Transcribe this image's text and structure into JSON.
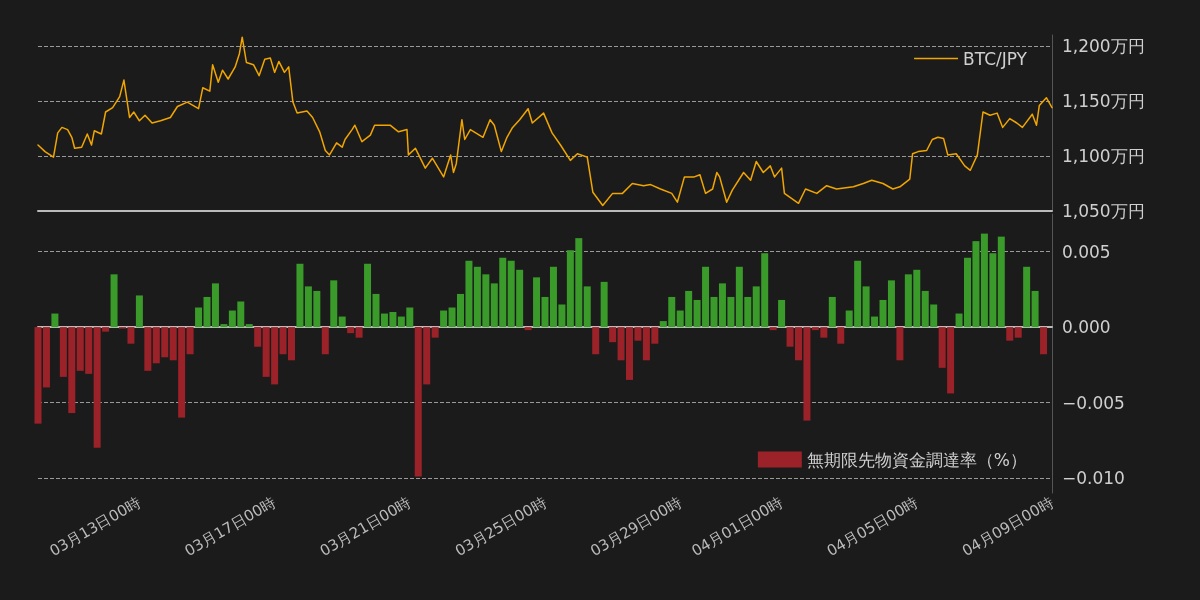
{
  "chart_data": [
    {
      "type": "line",
      "x": [
        "--03-10T00:00",
        "--03-10T05:00",
        "--03-10T11:00",
        "--03-10T14:00",
        "--03-10T17:00",
        "--03-10T21:00",
        "--03-11T00:00",
        "--03-11T02:00",
        "--03-11T07:00",
        "--03-11T11:00",
        "--03-11T14:00",
        "--03-11T16:00",
        "--03-11T21:00",
        "--03-12T00:00",
        "--03-12T05:00",
        "--03-12T10:00",
        "--03-12T13:00",
        "--03-12T17:00",
        "--03-12T20:00",
        "--03-13T00:00",
        "--03-13T04:00",
        "--03-13T09:00",
        "--03-13T15:00",
        "--03-13T22:00",
        "--03-14T03:00",
        "--03-14T10:00",
        "--03-14T18:00",
        "--03-14T21:00",
        "--03-15T02:00",
        "--03-15T04:00",
        "--03-15T08:00",
        "--03-15T11:00",
        "--03-15T15:00",
        "--03-15T20:00",
        "--03-15T23:00",
        "--03-16T01:00",
        "--03-16T04:00",
        "--03-16T09:00",
        "--03-16T13:00",
        "--03-16T17:00",
        "--03-16T21:00",
        "--03-17T00:00",
        "--03-17T03:00",
        "--03-17T07:00",
        "--03-17T10:00",
        "--03-17T13:00",
        "--03-17T16:00",
        "--03-17T23:00",
        "--03-18T03:00",
        "--03-18T08:00",
        "--03-18T12:00",
        "--03-18T15:00",
        "--03-18T20:00",
        "--03-19T00:00",
        "--03-19T02:00",
        "--03-19T07:00",
        "--03-19T09:00",
        "--03-19T14:00",
        "--03-19T20:00",
        "--03-19T23:00",
        "--03-20T10:00",
        "--03-20T16:00",
        "--03-20T22:00",
        "--03-20T23:00",
        "--03-21T04:00",
        "--03-21T11:00",
        "--03-21T16:00",
        "--03-22T00:00",
        "--03-22T05:00",
        "--03-22T07:00",
        "--03-22T09:00",
        "--03-22T13:00",
        "--03-22T15:00",
        "--03-22T19:00",
        "--03-23T04:00",
        "--03-23T09:00",
        "--03-23T12:00",
        "--03-23T17:00",
        "--03-23T21:00",
        "--03-24T01:00",
        "--03-24T06:00",
        "--03-24T12:00",
        "--03-24T15:00",
        "--03-24T23:00",
        "--03-25T05:00",
        "--03-25T11:00",
        "--03-25T18:00",
        "--03-25T23:00",
        "--03-26T06:00",
        "--03-26T10:00",
        "--03-26T17:00",
        "--03-27T00:00",
        "--03-27T07:00",
        "--03-27T14:00",
        "--03-27T22:00",
        "--03-28T03:00",
        "--03-28T10:00",
        "--03-28T18:00",
        "--03-28T22:00",
        "--03-29T03:00",
        "--03-29T10:00",
        "--03-29T14:00",
        "--03-29T18:00",
        "--03-29T23:00",
        "--03-30T02:00",
        "--03-30T04:00",
        "--03-30T09:00",
        "--03-30T13:00",
        "--03-30T21:00",
        "--03-31T02:00",
        "--03-31T06:00",
        "--03-31T11:00",
        "--03-31T16:00",
        "--03-31T19:00",
        "--04-01T00:00",
        "--04-01T02:00",
        "--04-01T12:00",
        "--04-01T17:00",
        "--04-02T01:00",
        "--04-02T08:00",
        "--04-02T15:00",
        "--04-03T03:00",
        "--04-03T10:00",
        "--04-03T16:00",
        "--04-04T00:00",
        "--04-04T07:00",
        "--04-04T12:00",
        "--04-04T19:00",
        "--04-04T21:00",
        "--04-05T01:00",
        "--04-05T07:00",
        "--04-05T11:00",
        "--04-05T15:00",
        "--04-05T19:00",
        "--04-05T22:00",
        "--04-06T04:00",
        "--04-06T10:00",
        "--04-06T14:00",
        "--04-06T19:00",
        "--04-06T23:00",
        "--04-07T04:00",
        "--04-07T09:00",
        "--04-07T13:00",
        "--04-07T18:00",
        "--04-07T23:00",
        "--04-08T03:00",
        "--04-08T10:00",
        "--04-08T13:00",
        "--04-08T15:00",
        "--04-08T20:00",
        "--04-09T00:00"
      ],
      "series": [
        {
          "name": "BTC/JPY",
          "color": "#f0a500",
          "values": [
            1110,
            1104,
            1099,
            1121,
            1126,
            1124,
            1117,
            1107,
            1108,
            1120,
            1110,
            1123,
            1120,
            1140,
            1144,
            1154,
            1169,
            1135,
            1140,
            1132,
            1137,
            1130,
            1132,
            1135,
            1145,
            1149,
            1143,
            1162,
            1159,
            1183,
            1167,
            1178,
            1170,
            1181,
            1193,
            1208,
            1185,
            1183,
            1173,
            1188,
            1189,
            1176,
            1186,
            1176,
            1181,
            1149,
            1139,
            1141,
            1135,
            1122,
            1105,
            1101,
            1112,
            1108,
            1115,
            1124,
            1128,
            1113,
            1119,
            1128,
            1128,
            1122,
            1124,
            1101,
            1107,
            1089,
            1098,
            1081,
            1101,
            1085,
            1093,
            1133,
            1115,
            1124,
            1117,
            1133,
            1128,
            1104,
            1117,
            1126,
            1133,
            1143,
            1130,
            1139,
            1121,
            1110,
            1096,
            1102,
            1099,
            1067,
            1055,
            1066,
            1066,
            1075,
            1073,
            1074,
            1070,
            1066,
            1058,
            1081,
            1081,
            1083,
            1066,
            1070,
            1085,
            1081,
            1058,
            1069,
            1085,
            1078,
            1095,
            1085,
            1091,
            1081,
            1089,
            1066,
            1057,
            1070,
            1066,
            1073,
            1070,
            1072,
            1075,
            1078,
            1075,
            1070,
            1072,
            1079,
            1102,
            1104,
            1105,
            1115,
            1117,
            1116,
            1101,
            1102,
            1091,
            1087,
            1101,
            1140,
            1137,
            1139,
            1126,
            1134,
            1130,
            1126,
            1138,
            1128,
            1146,
            1153,
            1144
          ]
        }
      ],
      "xlim": [
        "--03-10T00:00",
        "--04-09T00:00"
      ],
      "ylim": [
        1050,
        1210
      ],
      "yticks": [
        {
          "value": 1050,
          "label": "1,050万円"
        },
        {
          "value": 1100,
          "label": "1,100万円"
        },
        {
          "value": 1150,
          "label": "1,150万円"
        },
        {
          "value": 1200,
          "label": "1,200万円"
        }
      ],
      "tick_labels": "y",
      "grid": "y",
      "legend": "top right"
    },
    {
      "type": "bar",
      "x": [
        "--03-10T00:00",
        "--03-10T06:00",
        "--03-10T12:00",
        "--03-10T18:00",
        "--03-11T00:00",
        "--03-11T06:00",
        "--03-11T12:00",
        "--03-11T18:00",
        "--03-12T00:00",
        "--03-12T06:00",
        "--03-12T12:00",
        "--03-12T18:00",
        "--03-13T00:00",
        "--03-13T06:00",
        "--03-13T12:00",
        "--03-13T18:00",
        "--03-14T00:00",
        "--03-14T06:00",
        "--03-14T12:00",
        "--03-14T18:00",
        "--03-15T00:00",
        "--03-15T06:00",
        "--03-15T12:00",
        "--03-15T18:00",
        "--03-16T00:00",
        "--03-16T06:00",
        "--03-16T12:00",
        "--03-16T18:00",
        "--03-17T00:00",
        "--03-17T06:00",
        "--03-17T12:00",
        "--03-17T18:00",
        "--03-18T00:00",
        "--03-18T06:00",
        "--03-18T12:00",
        "--03-18T18:00",
        "--03-19T00:00",
        "--03-19T06:00",
        "--03-19T12:00",
        "--03-19T18:00",
        "--03-20T00:00",
        "--03-20T06:00",
        "--03-20T12:00",
        "--03-20T18:00",
        "--03-21T00:00",
        "--03-21T06:00",
        "--03-21T12:00",
        "--03-21T18:00",
        "--03-22T00:00",
        "--03-22T06:00",
        "--03-22T12:00",
        "--03-22T18:00",
        "--03-23T00:00",
        "--03-23T06:00",
        "--03-23T12:00",
        "--03-23T18:00",
        "--03-24T00:00",
        "--03-24T06:00",
        "--03-24T12:00",
        "--03-24T18:00",
        "--03-25T00:00",
        "--03-25T06:00",
        "--03-25T12:00",
        "--03-25T18:00",
        "--03-26T00:00",
        "--03-26T06:00",
        "--03-26T12:00",
        "--03-26T18:00",
        "--03-27T00:00",
        "--03-27T06:00",
        "--03-27T12:00",
        "--03-27T18:00",
        "--03-28T00:00",
        "--03-28T06:00",
        "--03-28T12:00",
        "--03-28T18:00",
        "--03-29T00:00",
        "--03-29T06:00",
        "--03-29T12:00",
        "--03-29T18:00",
        "--03-30T00:00",
        "--03-30T06:00",
        "--03-30T12:00",
        "--03-30T18:00",
        "--03-31T00:00",
        "--03-31T06:00",
        "--03-31T12:00",
        "--03-31T18:00",
        "--04-01T00:00",
        "--04-01T06:00",
        "--04-01T12:00",
        "--04-01T18:00",
        "--04-02T00:00",
        "--04-02T06:00",
        "--04-02T12:00",
        "--04-02T18:00",
        "--04-03T00:00",
        "--04-03T06:00",
        "--04-03T12:00",
        "--04-03T18:00",
        "--04-04T00:00",
        "--04-04T06:00",
        "--04-04T12:00",
        "--04-04T18:00",
        "--04-05T00:00",
        "--04-05T06:00",
        "--04-05T12:00",
        "--04-05T18:00",
        "--04-06T00:00",
        "--04-06T06:00",
        "--04-06T12:00",
        "--04-06T18:00",
        "--04-07T00:00",
        "--04-07T06:00",
        "--04-07T12:00",
        "--04-07T18:00",
        "--04-08T00:00",
        "--04-08T06:00",
        "--04-08T12:00",
        "--04-08T18:00"
      ],
      "series": [
        {
          "name": "無期限先物資金調達率（%）",
          "color": "#9b2228",
          "values": [
            -0.0064,
            -0.004,
            0.0009,
            -0.0033,
            -0.0057,
            -0.0029,
            -0.0031,
            -0.008,
            -0.0003,
            0.0035,
            -0.0001,
            -0.0011,
            0.0021,
            -0.0029,
            -0.0024,
            -0.002,
            -0.0022,
            -0.006,
            -0.0018,
            0.0013,
            0.002,
            0.0029,
            0.0002,
            0.0011,
            0.0017,
            0.0002,
            -0.0013,
            -0.0033,
            -0.0038,
            -0.0018,
            -0.0022,
            0.0042,
            0.0027,
            0.0024,
            -0.0018,
            0.0031,
            0.0007,
            -0.0004,
            -0.0007,
            0.0042,
            0.0022,
            0.0009,
            0.001,
            0.0007,
            0.0013,
            -0.0099,
            -0.0038,
            -0.0007,
            0.0011,
            0.0013,
            0.0022,
            0.0044,
            0.004,
            0.0035,
            0.0029,
            0.0046,
            0.0044,
            0.0038,
            -0.0002,
            0.0033,
            0.002,
            0.004,
            0.0015,
            0.0051,
            0.0059,
            0.0027,
            -0.0018,
            0.003,
            -0.001,
            -0.0022,
            -0.0035,
            -0.0009,
            -0.0022,
            -0.0011,
            0.0004,
            0.002,
            0.0011,
            0.0024,
            0.0018,
            0.004,
            0.002,
            0.0029,
            0.002,
            0.004,
            0.002,
            0.0027,
            0.0049,
            -0.0002,
            0.0018,
            -0.0013,
            -0.0022,
            -0.0062,
            -0.0002,
            -0.0007,
            0.002,
            -0.0011,
            0.0011,
            0.0044,
            0.0027,
            0.0007,
            0.0018,
            0.0031,
            -0.0022,
            0.0035,
            0.0038,
            0.0024,
            0.0015,
            -0.0027,
            -0.0044,
            0.0009,
            0.0046,
            0.0057,
            0.0062,
            0.0049,
            0.006,
            -0.0009,
            -0.0007,
            0.004,
            0.0024,
            -0.0018
          ],
          "colors": [
            "#9b2228",
            "#9b2228",
            "#3a9a2a",
            "#9b2228",
            "#9b2228",
            "#9b2228",
            "#9b2228",
            "#9b2228",
            "#9b2228",
            "#3a9a2a",
            "#9b2228",
            "#9b2228",
            "#3a9a2a",
            "#9b2228",
            "#9b2228",
            "#9b2228",
            "#9b2228",
            "#9b2228",
            "#9b2228",
            "#3a9a2a",
            "#3a9a2a",
            "#3a9a2a",
            "#3a9a2a",
            "#3a9a2a",
            "#3a9a2a",
            "#3a9a2a",
            "#9b2228",
            "#9b2228",
            "#9b2228",
            "#9b2228",
            "#9b2228",
            "#3a9a2a",
            "#3a9a2a",
            "#3a9a2a",
            "#9b2228",
            "#3a9a2a",
            "#3a9a2a",
            "#9b2228",
            "#9b2228",
            "#3a9a2a",
            "#3a9a2a",
            "#3a9a2a",
            "#3a9a2a",
            "#3a9a2a",
            "#3a9a2a",
            "#9b2228",
            "#9b2228",
            "#9b2228",
            "#3a9a2a",
            "#3a9a2a",
            "#3a9a2a",
            "#3a9a2a",
            "#3a9a2a",
            "#3a9a2a",
            "#3a9a2a",
            "#3a9a2a",
            "#3a9a2a",
            "#3a9a2a",
            "#9b2228",
            "#3a9a2a",
            "#3a9a2a",
            "#3a9a2a",
            "#3a9a2a",
            "#3a9a2a",
            "#3a9a2a",
            "#3a9a2a",
            "#9b2228",
            "#3a9a2a",
            "#9b2228",
            "#9b2228",
            "#9b2228",
            "#9b2228",
            "#9b2228",
            "#9b2228",
            "#3a9a2a",
            "#3a9a2a",
            "#3a9a2a",
            "#3a9a2a",
            "#3a9a2a",
            "#3a9a2a",
            "#3a9a2a",
            "#3a9a2a",
            "#3a9a2a",
            "#3a9a2a",
            "#3a9a2a",
            "#3a9a2a",
            "#3a9a2a",
            "#9b2228",
            "#3a9a2a",
            "#9b2228",
            "#9b2228",
            "#9b2228",
            "#9b2228",
            "#9b2228",
            "#3a9a2a",
            "#9b2228",
            "#3a9a2a",
            "#3a9a2a",
            "#3a9a2a",
            "#3a9a2a",
            "#3a9a2a",
            "#3a9a2a",
            "#9b2228",
            "#3a9a2a",
            "#3a9a2a",
            "#3a9a2a",
            "#3a9a2a",
            "#9b2228",
            "#9b2228",
            "#3a9a2a",
            "#3a9a2a",
            "#3a9a2a",
            "#3a9a2a",
            "#3a9a2a",
            "#3a9a2a",
            "#9b2228",
            "#9b2228",
            "#3a9a2a",
            "#3a9a2a",
            "#9b2228"
          ]
        }
      ],
      "xlim": [
        "--03-10T00:00",
        "--04-09T00:00"
      ],
      "xticks": [
        {
          "value": "--03-13T00:00",
          "label": "03月13日00時"
        },
        {
          "value": "--03-17T00:00",
          "label": "03月17日00時"
        },
        {
          "value": "--03-21T00:00",
          "label": "03月21日00時"
        },
        {
          "value": "--03-25T00:00",
          "label": "03月25日00時"
        },
        {
          "value": "--03-29T00:00",
          "label": "03月29日00時"
        },
        {
          "value": "--04-01T00:00",
          "label": "04月01日00時"
        },
        {
          "value": "--04-05T00:00",
          "label": "04月05日00時"
        },
        {
          "value": "--04-09T00:00",
          "label": "04月09日00時"
        }
      ],
      "ylim": [
        -0.011,
        0.0075
      ],
      "yticks": [
        {
          "value": -0.01,
          "label": "−0.010"
        },
        {
          "value": -0.005,
          "label": "−0.005"
        },
        {
          "value": 0,
          "label": "0.000"
        },
        {
          "value": 0.005,
          "label": "0.005"
        }
      ],
      "grid": "y",
      "legend": "bottom right"
    }
  ]
}
